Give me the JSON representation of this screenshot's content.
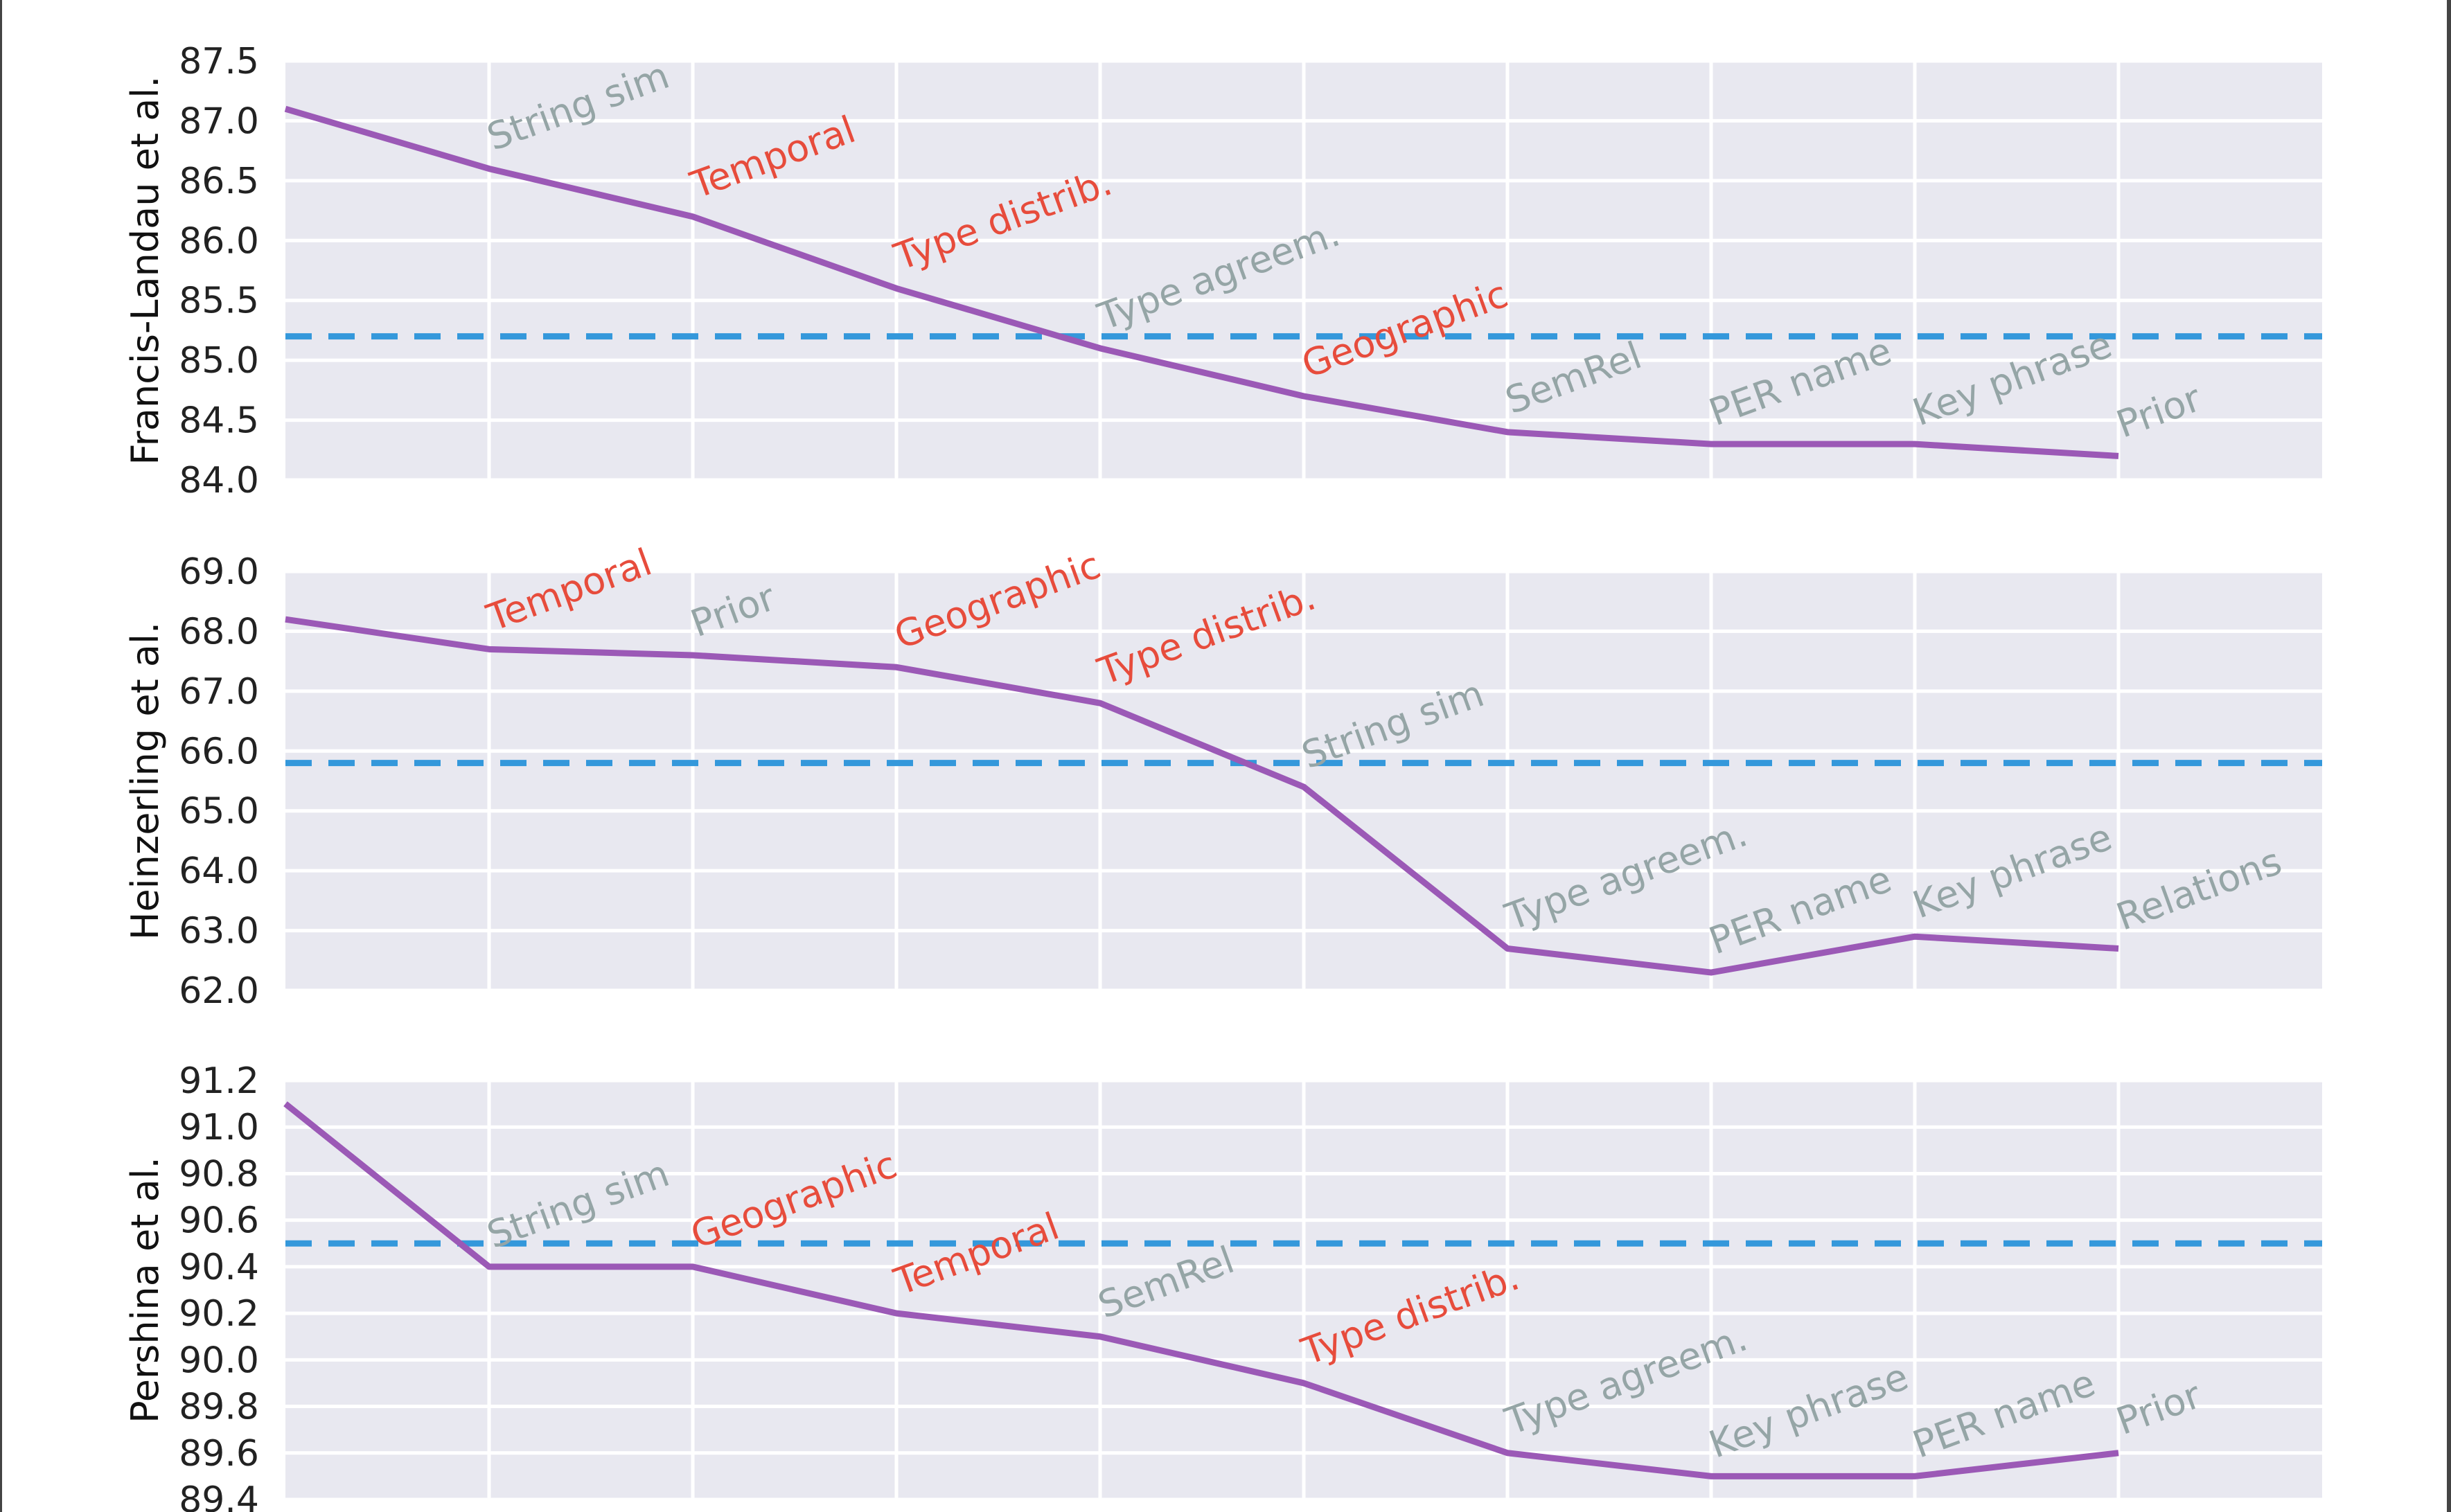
{
  "chart_data": [
    {
      "type": "line",
      "ylabel": "Francis-Landau et al.",
      "ylim": [
        84.0,
        87.5
      ],
      "yticks": [
        "84.0",
        "84.5",
        "85.0",
        "85.5",
        "86.0",
        "86.5",
        "87.0",
        "87.5"
      ],
      "ytick_values": [
        84.0,
        84.5,
        85.0,
        85.5,
        86.0,
        86.5,
        87.0,
        87.5
      ],
      "baseline": 85.2,
      "values": [
        87.1,
        86.6,
        86.2,
        85.6,
        85.1,
        84.7,
        84.4,
        84.3,
        84.3,
        84.2
      ],
      "annotations": [
        {
          "text": "String sim",
          "index": 1,
          "highlight": false
        },
        {
          "text": "Temporal",
          "index": 2,
          "highlight": true
        },
        {
          "text": "Type distrib.",
          "index": 3,
          "highlight": true
        },
        {
          "text": "Type agreem.",
          "index": 4,
          "highlight": false
        },
        {
          "text": "Geographic",
          "index": 5,
          "highlight": true
        },
        {
          "text": "SemRel",
          "index": 6,
          "highlight": false
        },
        {
          "text": "PER name",
          "index": 7,
          "highlight": false
        },
        {
          "text": "Key phrase",
          "index": 8,
          "highlight": false
        },
        {
          "text": "Prior",
          "index": 9,
          "highlight": false
        }
      ]
    },
    {
      "type": "line",
      "ylabel": "Heinzerling et al.",
      "ylim": [
        62.0,
        69.0
      ],
      "yticks": [
        "62.0",
        "63.0",
        "64.0",
        "65.0",
        "66.0",
        "67.0",
        "68.0",
        "69.0"
      ],
      "ytick_values": [
        62.0,
        63.0,
        64.0,
        65.0,
        66.0,
        67.0,
        68.0,
        69.0
      ],
      "baseline": 65.8,
      "values": [
        68.2,
        67.7,
        67.6,
        67.4,
        66.8,
        65.4,
        62.7,
        62.3,
        62.9,
        62.7
      ],
      "annotations": [
        {
          "text": "Temporal",
          "index": 1,
          "highlight": true
        },
        {
          "text": "Prior",
          "index": 2,
          "highlight": false
        },
        {
          "text": "Geographic",
          "index": 3,
          "highlight": true
        },
        {
          "text": "Type distrib.",
          "index": 4,
          "highlight": true
        },
        {
          "text": "String sim",
          "index": 5,
          "highlight": false
        },
        {
          "text": "Type agreem.",
          "index": 6,
          "highlight": false
        },
        {
          "text": "PER name",
          "index": 7,
          "highlight": false
        },
        {
          "text": "Key phrase",
          "index": 8,
          "highlight": false
        },
        {
          "text": "Relations",
          "index": 9,
          "highlight": false
        }
      ]
    },
    {
      "type": "line",
      "ylabel": "Pershina et al.",
      "ylim": [
        89.4,
        91.2
      ],
      "yticks": [
        "89.4",
        "89.6",
        "89.8",
        "90.0",
        "90.2",
        "90.4",
        "90.6",
        "90.8",
        "91.0",
        "91.2"
      ],
      "ytick_values": [
        89.4,
        89.6,
        89.8,
        90.0,
        90.2,
        90.4,
        90.6,
        90.8,
        91.0,
        91.2
      ],
      "baseline": 90.5,
      "values": [
        91.1,
        90.4,
        90.4,
        90.2,
        90.1,
        89.9,
        89.6,
        89.5,
        89.5,
        89.6
      ],
      "annotations": [
        {
          "text": "String sim",
          "index": 1,
          "highlight": false
        },
        {
          "text": "Geographic",
          "index": 2,
          "highlight": true
        },
        {
          "text": "Temporal",
          "index": 3,
          "highlight": true
        },
        {
          "text": "SemRel",
          "index": 4,
          "highlight": false
        },
        {
          "text": "Type distrib.",
          "index": 5,
          "highlight": true
        },
        {
          "text": "Type agreem.",
          "index": 6,
          "highlight": false
        },
        {
          "text": "Key phrase",
          "index": 7,
          "highlight": false
        },
        {
          "text": "PER name",
          "index": 8,
          "highlight": false
        },
        {
          "text": "Prior",
          "index": 9,
          "highlight": false
        }
      ]
    }
  ],
  "colors": {
    "line": "#9b59b6",
    "baseline": "#3498db",
    "highlight": "#e74c3c",
    "annotation": "#95a5a6",
    "plot_bg": "#e8e8f0",
    "grid": "#ffffff"
  }
}
